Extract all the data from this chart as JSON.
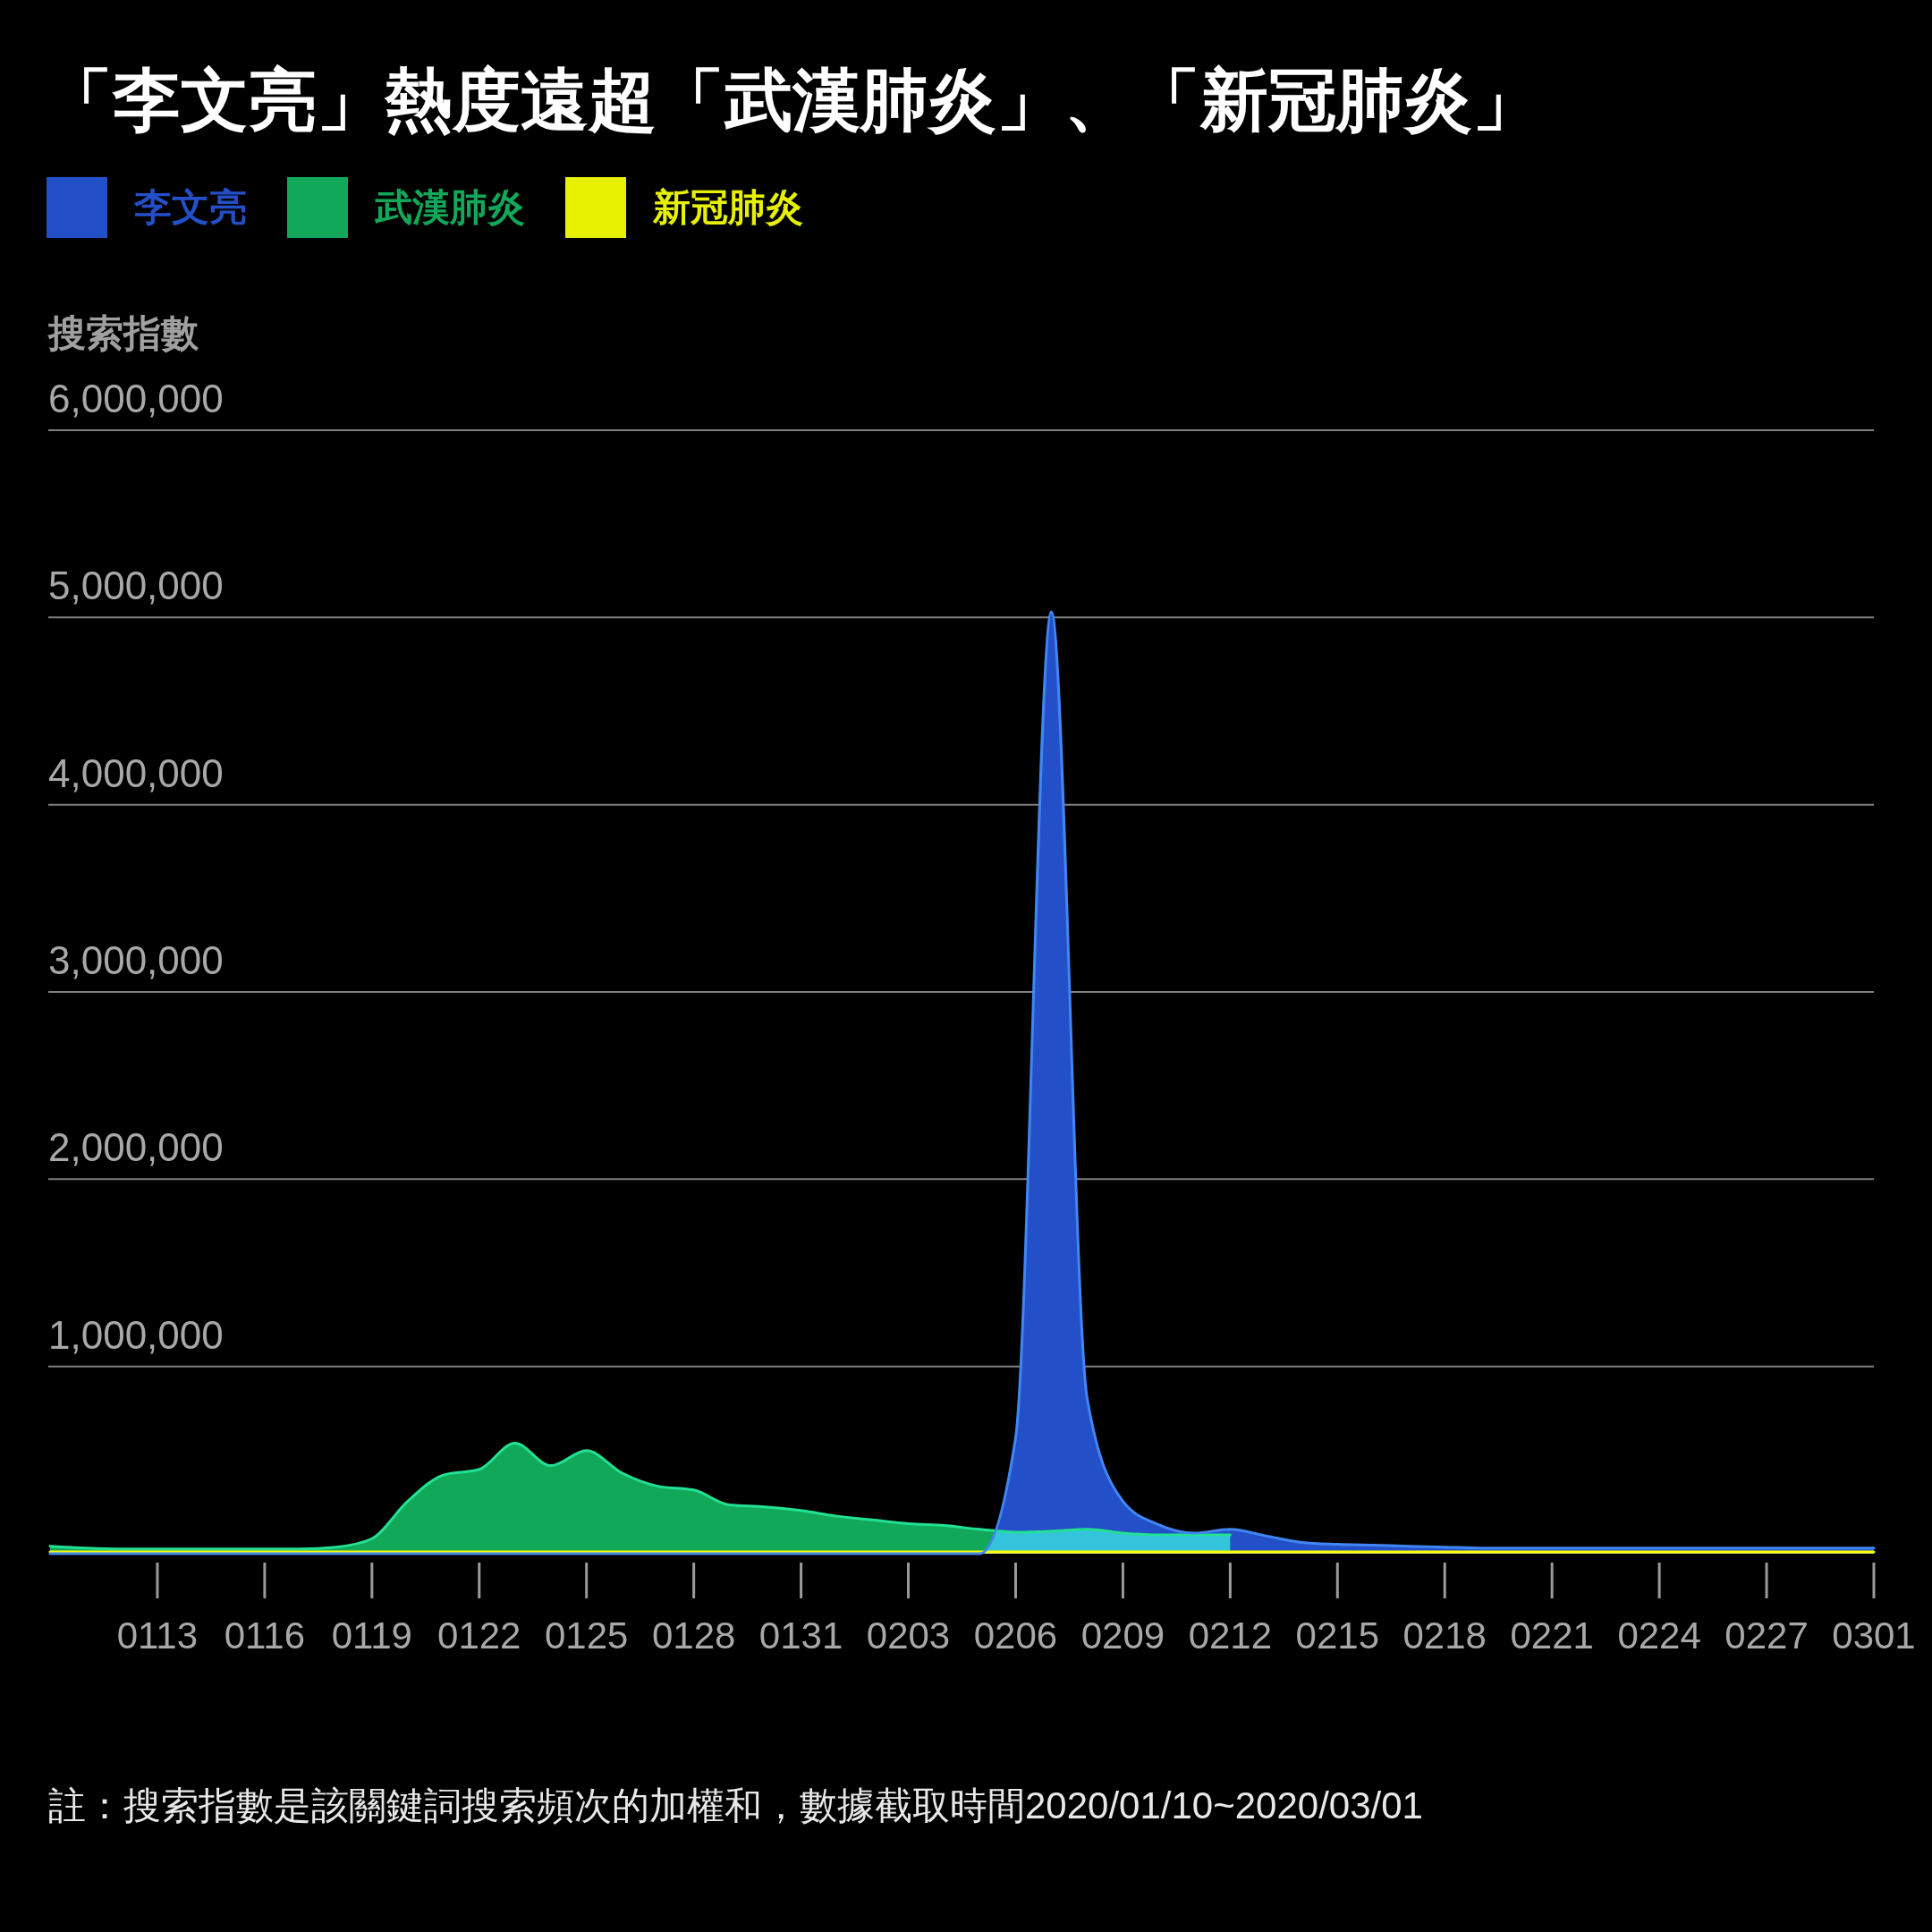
{
  "chart_data": {
    "type": "area",
    "title": "「李文亮」熱度遠超「武漢肺炎」、「新冠肺炎」",
    "ylabel": "搜索指數",
    "annotations": [
      "註：搜索指數是該關鍵詞搜索頻次的加權和，數據截取時間2020/01/10~2020/03/01"
    ],
    "x": [
      "2020-01-10",
      "2020-01-11",
      "2020-01-12",
      "2020-01-13",
      "2020-01-14",
      "2020-01-15",
      "2020-01-16",
      "2020-01-17",
      "2020-01-18",
      "2020-01-19",
      "2020-01-20",
      "2020-01-21",
      "2020-01-22",
      "2020-01-23",
      "2020-01-24",
      "2020-01-25",
      "2020-01-26",
      "2020-01-27",
      "2020-01-28",
      "2020-01-29",
      "2020-01-30",
      "2020-01-31",
      "2020-02-01",
      "2020-02-02",
      "2020-02-03",
      "2020-02-04",
      "2020-02-05",
      "2020-02-06",
      "2020-02-07",
      "2020-02-08",
      "2020-02-09",
      "2020-02-10",
      "2020-02-11",
      "2020-02-12",
      "2020-02-13",
      "2020-02-14",
      "2020-02-15",
      "2020-02-16",
      "2020-02-17",
      "2020-02-18",
      "2020-02-19",
      "2020-02-20",
      "2020-02-21",
      "2020-02-22",
      "2020-02-23",
      "2020-02-24",
      "2020-02-25",
      "2020-02-26",
      "2020-02-27",
      "2020-02-28",
      "2020-02-29",
      "2020-03-01"
    ],
    "series": [
      {
        "name": "李文亮",
        "color": "#2350c8",
        "values": [
          0,
          0,
          0,
          0,
          0,
          0,
          0,
          0,
          0,
          0,
          0,
          0,
          0,
          0,
          0,
          0,
          0,
          0,
          0,
          0,
          0,
          0,
          0,
          0,
          0,
          0,
          0,
          620000,
          5030000,
          830000,
          280000,
          155000,
          110000,
          130000,
          95000,
          60000,
          50000,
          45000,
          40000,
          35000,
          30000,
          30000,
          30000,
          30000,
          30000,
          30000,
          30000,
          30000,
          30000,
          30000,
          30000,
          30000
        ]
      },
      {
        "name": "武漢肺炎",
        "color": "#12a85a",
        "values": [
          40000,
          30000,
          25000,
          25000,
          25000,
          25000,
          25000,
          25000,
          35000,
          80000,
          280000,
          420000,
          450000,
          590000,
          470000,
          550000,
          430000,
          360000,
          340000,
          260000,
          250000,
          230000,
          200000,
          180000,
          160000,
          150000,
          130000,
          115000,
          120000,
          130000,
          110000,
          100000,
          100000,
          100000,
          null,
          null,
          null,
          null,
          null,
          null,
          null,
          null,
          null,
          null,
          null,
          null,
          null,
          null,
          null,
          null,
          null,
          null
        ]
      },
      {
        "name": "新冠肺炎",
        "color": "#e6f000",
        "values": [
          10000,
          10000,
          10000,
          10000,
          10000,
          10000,
          10000,
          10000,
          10000,
          10000,
          10000,
          10000,
          10000,
          10000,
          10000,
          10000,
          10000,
          10000,
          10000,
          10000,
          10000,
          10000,
          10000,
          10000,
          10000,
          10000,
          10000,
          10000,
          10000,
          10000,
          10000,
          10000,
          10000,
          10000,
          10000,
          10000,
          10000,
          10000,
          10000,
          10000,
          10000,
          10000,
          10000,
          10000,
          10000,
          10000,
          10000,
          10000,
          10000,
          10000,
          10000,
          10000
        ]
      }
    ],
    "xlim": [
      "2020-01-10",
      "2020-03-01"
    ],
    "xticks": [
      {
        "value": "2020-01-13",
        "label": "0113"
      },
      {
        "value": "2020-01-16",
        "label": "0116"
      },
      {
        "value": "2020-01-19",
        "label": "0119"
      },
      {
        "value": "2020-01-22",
        "label": "0122"
      },
      {
        "value": "2020-01-25",
        "label": "0125"
      },
      {
        "value": "2020-01-28",
        "label": "0128"
      },
      {
        "value": "2020-01-31",
        "label": "0131"
      },
      {
        "value": "2020-02-03",
        "label": "0203"
      },
      {
        "value": "2020-02-06",
        "label": "0206"
      },
      {
        "value": "2020-02-09",
        "label": "0209"
      },
      {
        "value": "2020-02-12",
        "label": "0212"
      },
      {
        "value": "2020-02-15",
        "label": "0215"
      },
      {
        "value": "2020-02-18",
        "label": "0218"
      },
      {
        "value": "2020-02-21",
        "label": "0221"
      },
      {
        "value": "2020-02-24",
        "label": "0224"
      },
      {
        "value": "2020-02-27",
        "label": "0227"
      },
      {
        "value": "2020-03-01",
        "label": "0301"
      }
    ],
    "ylim": [
      0,
      6000000
    ],
    "yticks": [
      {
        "value": 1000000,
        "label": "1,000,000"
      },
      {
        "value": 2000000,
        "label": "2,000,000"
      },
      {
        "value": 3000000,
        "label": "3,000,000"
      },
      {
        "value": 4000000,
        "label": "4,000,000"
      },
      {
        "value": 5000000,
        "label": "5,000,000"
      },
      {
        "value": 6000000,
        "label": "6,000,000"
      }
    ],
    "grid": "y",
    "legend": "top left"
  }
}
